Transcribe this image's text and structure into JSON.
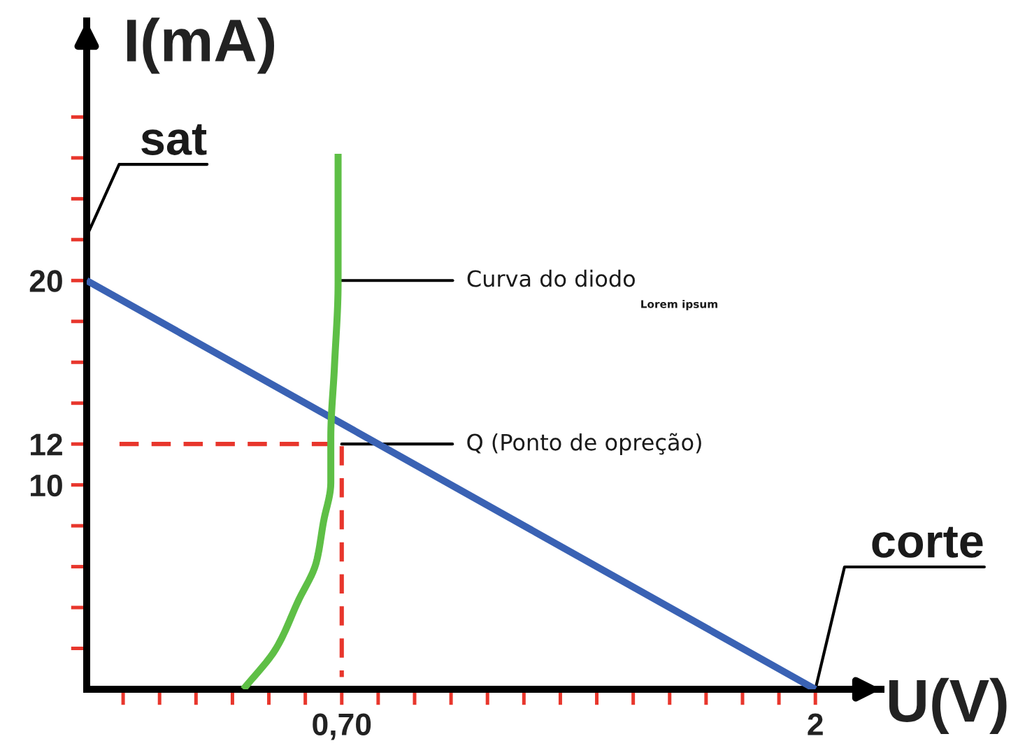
{
  "chart_data": {
    "type": "line",
    "xlabel": "U(V)",
    "ylabel": "I(mA)",
    "xlim": [
      0,
      2.18
    ],
    "ylim": [
      0,
      32.7
    ],
    "xticks": [
      {
        "value": 0.1,
        "label": null
      },
      {
        "value": 0.2,
        "label": null
      },
      {
        "value": 0.3,
        "label": null
      },
      {
        "value": 0.4,
        "label": null
      },
      {
        "value": 0.5,
        "label": null
      },
      {
        "value": 0.6,
        "label": null
      },
      {
        "value": 0.7,
        "label": "0,70"
      },
      {
        "value": 0.8,
        "label": null
      },
      {
        "value": 0.9,
        "label": null
      },
      {
        "value": 1.0,
        "label": null
      },
      {
        "value": 1.1,
        "label": null
      },
      {
        "value": 1.2,
        "label": null
      },
      {
        "value": 1.3,
        "label": null
      },
      {
        "value": 1.4,
        "label": null
      },
      {
        "value": 1.5,
        "label": null
      },
      {
        "value": 1.6,
        "label": null
      },
      {
        "value": 1.7,
        "label": null
      },
      {
        "value": 1.8,
        "label": null
      },
      {
        "value": 1.9,
        "label": null
      },
      2
    ],
    "yticks": [
      {
        "value": 2,
        "label": null
      },
      {
        "value": 4,
        "label": null
      },
      {
        "value": 6,
        "label": null
      },
      {
        "value": 8,
        "label": null
      },
      10,
      12,
      {
        "value": 14,
        "label": null
      },
      {
        "value": 16,
        "label": null
      },
      {
        "value": 18,
        "label": null
      },
      20,
      {
        "value": 22,
        "label": null
      },
      {
        "value": 24,
        "label": null
      },
      {
        "value": 26,
        "label": null
      },
      {
        "value": 28,
        "label": null
      }
    ],
    "series": [
      {
        "color": "#3a62b4",
        "x": [
          0,
          2
        ],
        "values": [
          20,
          0
        ]
      },
      {
        "color": "#5ebf46",
        "x": [
          0.43,
          0.52,
          0.58,
          0.63,
          0.65,
          0.67,
          0.67,
          0.68,
          0.69,
          0.69
        ],
        "values": [
          0,
          2,
          4.3,
          6.2,
          8.2,
          10.1,
          12.3,
          15.8,
          19.9,
          26.2
        ]
      },
      {
        "color": "#e8362c",
        "line_style": "dashed",
        "x": [
          0.09,
          0.7,
          0.7
        ],
        "values": [
          12,
          12,
          0.6
        ]
      }
    ],
    "annotations": [
      "sat",
      {
        "text": "corte",
        "x": 2,
        "y": 0
      },
      {
        "text": "Curva do diodo",
        "x": 0.69,
        "y": 20
      },
      {
        "text": "Q (Ponto de opreção)",
        "x": 0.7,
        "y": 12
      },
      "Lorem ipsum"
    ]
  }
}
